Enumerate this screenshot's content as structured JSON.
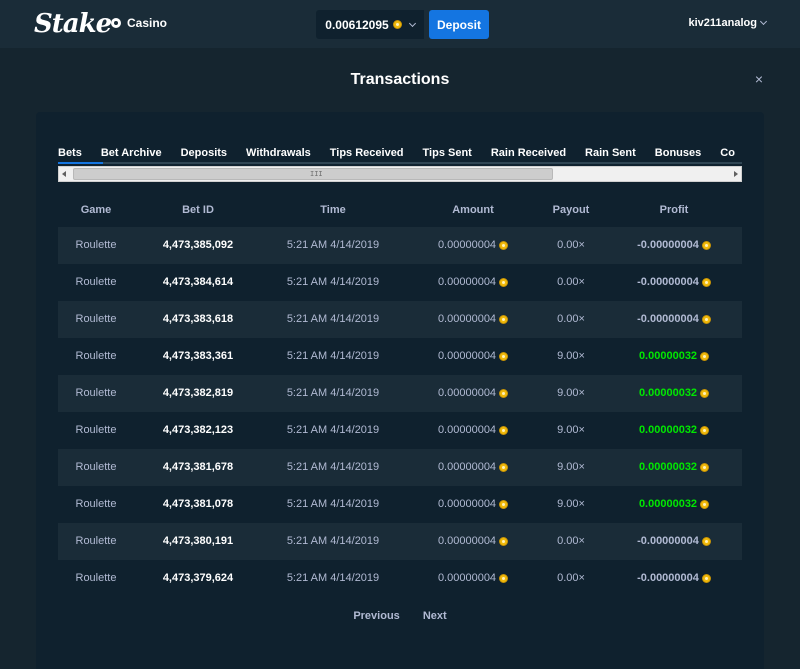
{
  "header": {
    "logo": "Stake",
    "nav_casino": "Casino",
    "balance": "0.00612095",
    "deposit_label": "Deposit",
    "username": "kiv211analog"
  },
  "modal": {
    "title": "Transactions",
    "close": "×"
  },
  "tabs": [
    {
      "label": "Bets",
      "active": true
    },
    {
      "label": "Bet Archive"
    },
    {
      "label": "Deposits"
    },
    {
      "label": "Withdrawals"
    },
    {
      "label": "Tips Received"
    },
    {
      "label": "Tips Sent"
    },
    {
      "label": "Rain Received"
    },
    {
      "label": "Rain Sent"
    },
    {
      "label": "Bonuses"
    },
    {
      "label": "Co"
    }
  ],
  "scroll": {
    "grip": "III"
  },
  "table": {
    "headers": {
      "game": "Game",
      "bet_id": "Bet ID",
      "time": "Time",
      "amount": "Amount",
      "payout": "Payout",
      "profit": "Profit"
    },
    "rows": [
      {
        "game": "Roulette",
        "bet_id": "4,473,385,092",
        "time": "5:21 AM 4/14/2019",
        "amount": "0.00000004",
        "payout": "0.00×",
        "profit": "-0.00000004",
        "win": false
      },
      {
        "game": "Roulette",
        "bet_id": "4,473,384,614",
        "time": "5:21 AM 4/14/2019",
        "amount": "0.00000004",
        "payout": "0.00×",
        "profit": "-0.00000004",
        "win": false
      },
      {
        "game": "Roulette",
        "bet_id": "4,473,383,618",
        "time": "5:21 AM 4/14/2019",
        "amount": "0.00000004",
        "payout": "0.00×",
        "profit": "-0.00000004",
        "win": false
      },
      {
        "game": "Roulette",
        "bet_id": "4,473,383,361",
        "time": "5:21 AM 4/14/2019",
        "amount": "0.00000004",
        "payout": "9.00×",
        "profit": "0.00000032",
        "win": true
      },
      {
        "game": "Roulette",
        "bet_id": "4,473,382,819",
        "time": "5:21 AM 4/14/2019",
        "amount": "0.00000004",
        "payout": "9.00×",
        "profit": "0.00000032",
        "win": true
      },
      {
        "game": "Roulette",
        "bet_id": "4,473,382,123",
        "time": "5:21 AM 4/14/2019",
        "amount": "0.00000004",
        "payout": "9.00×",
        "profit": "0.00000032",
        "win": true
      },
      {
        "game": "Roulette",
        "bet_id": "4,473,381,678",
        "time": "5:21 AM 4/14/2019",
        "amount": "0.00000004",
        "payout": "9.00×",
        "profit": "0.00000032",
        "win": true
      },
      {
        "game": "Roulette",
        "bet_id": "4,473,381,078",
        "time": "5:21 AM 4/14/2019",
        "amount": "0.00000004",
        "payout": "9.00×",
        "profit": "0.00000032",
        "win": true
      },
      {
        "game": "Roulette",
        "bet_id": "4,473,380,191",
        "time": "5:21 AM 4/14/2019",
        "amount": "0.00000004",
        "payout": "0.00×",
        "profit": "-0.00000004",
        "win": false
      },
      {
        "game": "Roulette",
        "bet_id": "4,473,379,624",
        "time": "5:21 AM 4/14/2019",
        "amount": "0.00000004",
        "payout": "0.00×",
        "profit": "-0.00000004",
        "win": false
      }
    ]
  },
  "pagination": {
    "previous": "Previous",
    "next": "Next"
  },
  "colors": {
    "background": "#1a2c38",
    "panel": "#0f212e",
    "accent": "#1475e1",
    "win": "#00e701",
    "coin": "#f0b90b"
  },
  "icons": {
    "casino": "casino-chip-icon",
    "coin": "btc-coin-icon",
    "close": "close-icon",
    "chevron": "chevron-down-icon"
  }
}
